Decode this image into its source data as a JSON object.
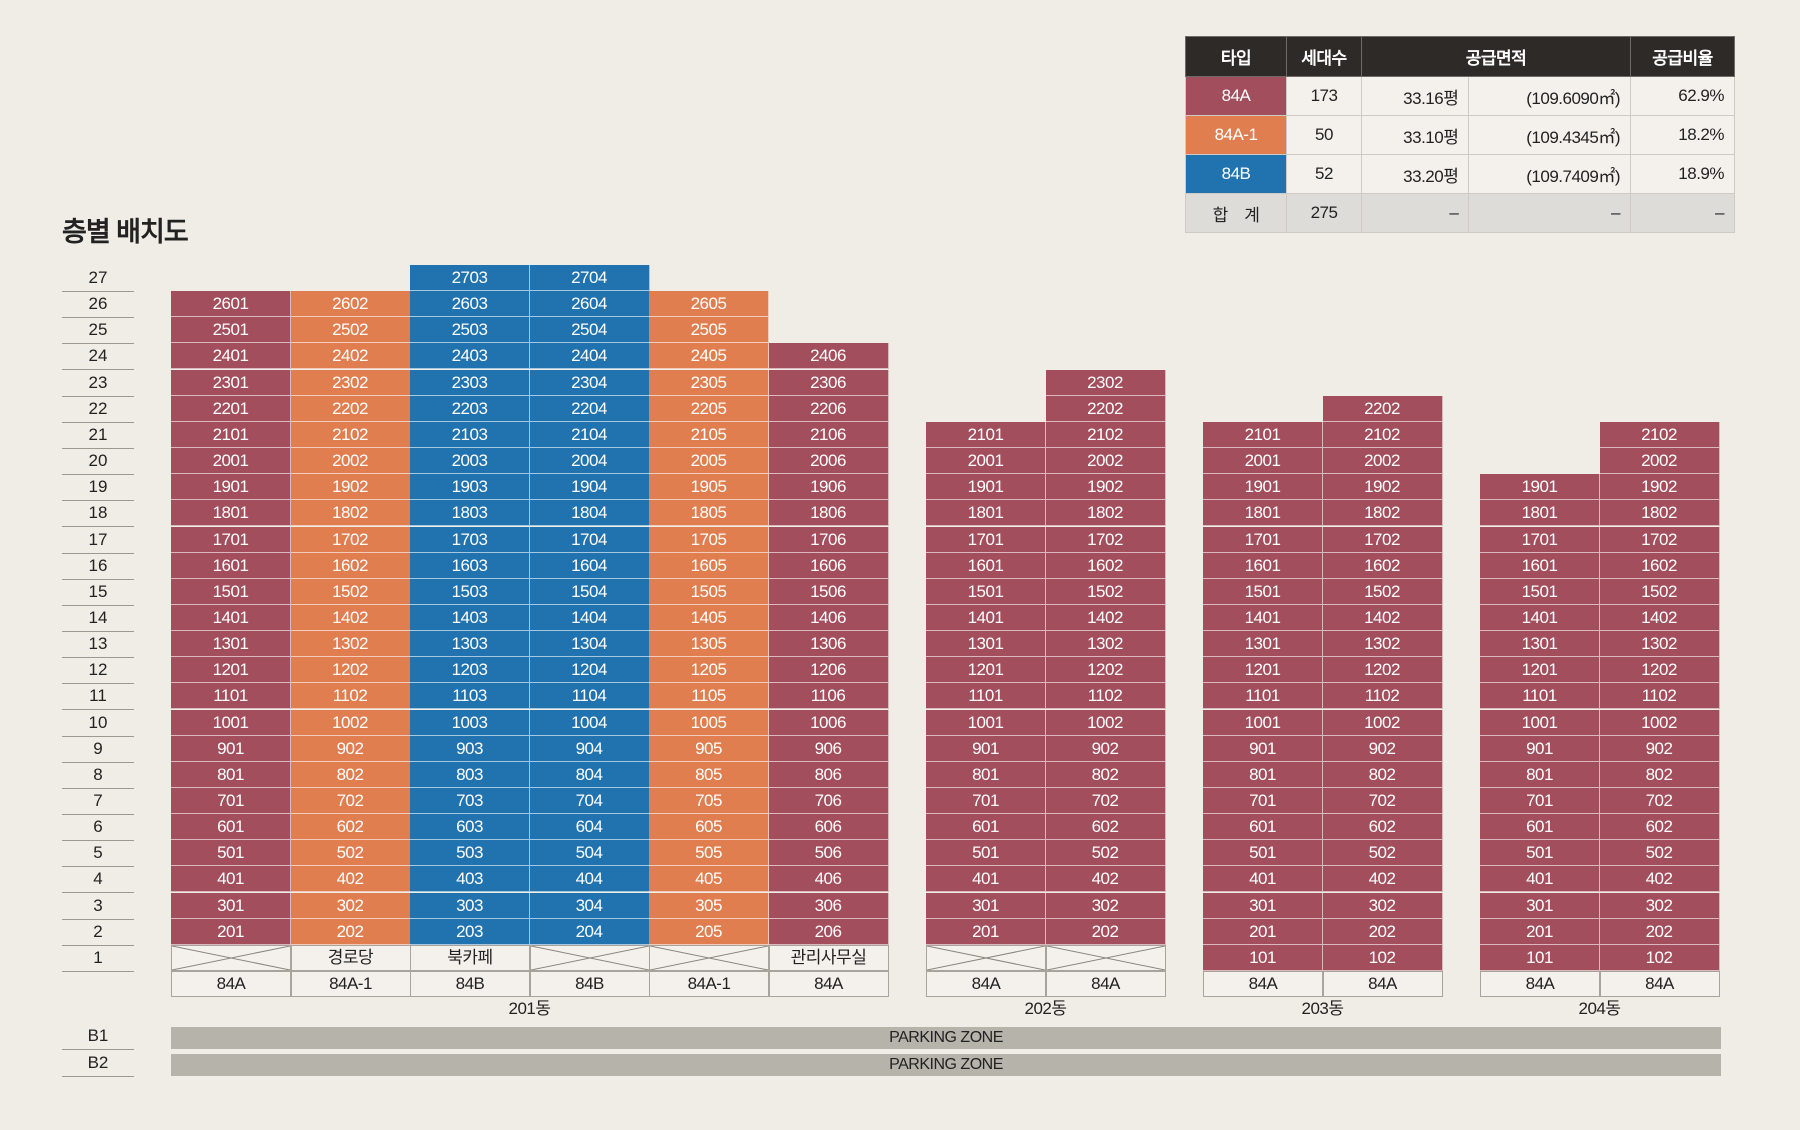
{
  "title": "층별 배치도",
  "summary": {
    "headers": {
      "type": "타입",
      "units": "세대수",
      "area": "공급면적",
      "ratio": "공급비율"
    },
    "rows": [
      {
        "type": "84A",
        "units": "173",
        "pyeong": "33.16평",
        "sqm": "(109.6090㎡)",
        "ratio": "62.9%",
        "color": "#a34e5c"
      },
      {
        "type": "84A-1",
        "units": "50",
        "pyeong": "33.10평",
        "sqm": "(109.4345㎡)",
        "ratio": "18.2%",
        "color": "#e07e50"
      },
      {
        "type": "84B",
        "units": "52",
        "pyeong": "33.20평",
        "sqm": "(109.7409㎡)",
        "ratio": "18.9%",
        "color": "#2173b0"
      }
    ],
    "total": {
      "label": "합　계",
      "units": "275",
      "pyeong": "–",
      "sqm": "–",
      "ratio": "–"
    }
  },
  "floors": [
    "27",
    "26",
    "25",
    "24",
    "23",
    "22",
    "21",
    "20",
    "19",
    "18",
    "17",
    "16",
    "15",
    "14",
    "13",
    "12",
    "11",
    "10",
    "9",
    "8",
    "7",
    "6",
    "5",
    "4",
    "3",
    "2",
    "1"
  ],
  "basements": [
    "B1",
    "B2"
  ],
  "parking_label": "PARKING ZONE",
  "buildings": [
    {
      "name": "201동",
      "columns": [
        {
          "line": "01",
          "type": "84A",
          "top": 26,
          "ground": "",
          "ground_x": true,
          "label": "84A"
        },
        {
          "line": "02",
          "type": "84A-1",
          "top": 26,
          "ground": "경로당",
          "ground_x": false,
          "label": "84A-1"
        },
        {
          "line": "03",
          "type": "84B",
          "top": 27,
          "ground": "북카페",
          "ground_x": false,
          "label": "84B"
        },
        {
          "line": "04",
          "type": "84B",
          "top": 27,
          "ground": "",
          "ground_x": true,
          "label": "84B"
        },
        {
          "line": "05",
          "type": "84A-1",
          "top": 26,
          "ground": "",
          "ground_x": true,
          "label": "84A-1"
        },
        {
          "line": "06",
          "type": "84A",
          "top": 24,
          "ground": "관리사무실",
          "ground_x": false,
          "label": "84A"
        }
      ]
    },
    {
      "name": "202동",
      "columns": [
        {
          "line": "01",
          "type": "84A",
          "top": 21,
          "ground": "",
          "ground_x": true,
          "label": "84A"
        },
        {
          "line": "02",
          "type": "84A",
          "top": 23,
          "ground": "",
          "ground_x": true,
          "label": "84A"
        }
      ]
    },
    {
      "name": "203동",
      "columns": [
        {
          "line": "01",
          "type": "84A",
          "top": 21,
          "ground": "101",
          "ground_x": false,
          "label": "84A"
        },
        {
          "line": "02",
          "type": "84A",
          "top": 22,
          "ground": "102",
          "ground_x": false,
          "label": "84A"
        }
      ]
    },
    {
      "name": "204동",
      "columns": [
        {
          "line": "01",
          "type": "84A",
          "top": 19,
          "ground": "101",
          "ground_x": false,
          "label": "84A"
        },
        {
          "line": "02",
          "type": "84A",
          "top": 21,
          "ground": "102",
          "ground_x": false,
          "label": "84A"
        }
      ]
    }
  ]
}
